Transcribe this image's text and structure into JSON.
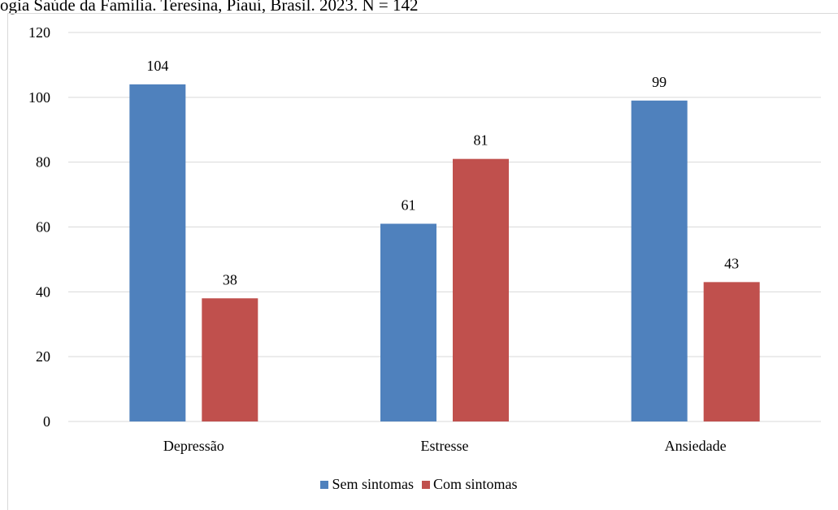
{
  "caption": "ogia Saúde da Família. Teresina, Piauí, Brasil. 2023.  N = 142",
  "chart_data": {
    "type": "bar",
    "categories": [
      "Depressão",
      "Estresse",
      "Ansiedade"
    ],
    "series": [
      {
        "name": "Sem sintomas",
        "values": [
          104,
          61,
          99
        ],
        "color": "#4F81BD"
      },
      {
        "name": "Com sintomas",
        "values": [
          38,
          81,
          43
        ],
        "color": "#C0504D"
      }
    ],
    "ylim": [
      0,
      120
    ],
    "yticks": [
      0,
      20,
      40,
      60,
      80,
      100,
      120
    ],
    "grid": true,
    "legend_position": "bottom"
  }
}
